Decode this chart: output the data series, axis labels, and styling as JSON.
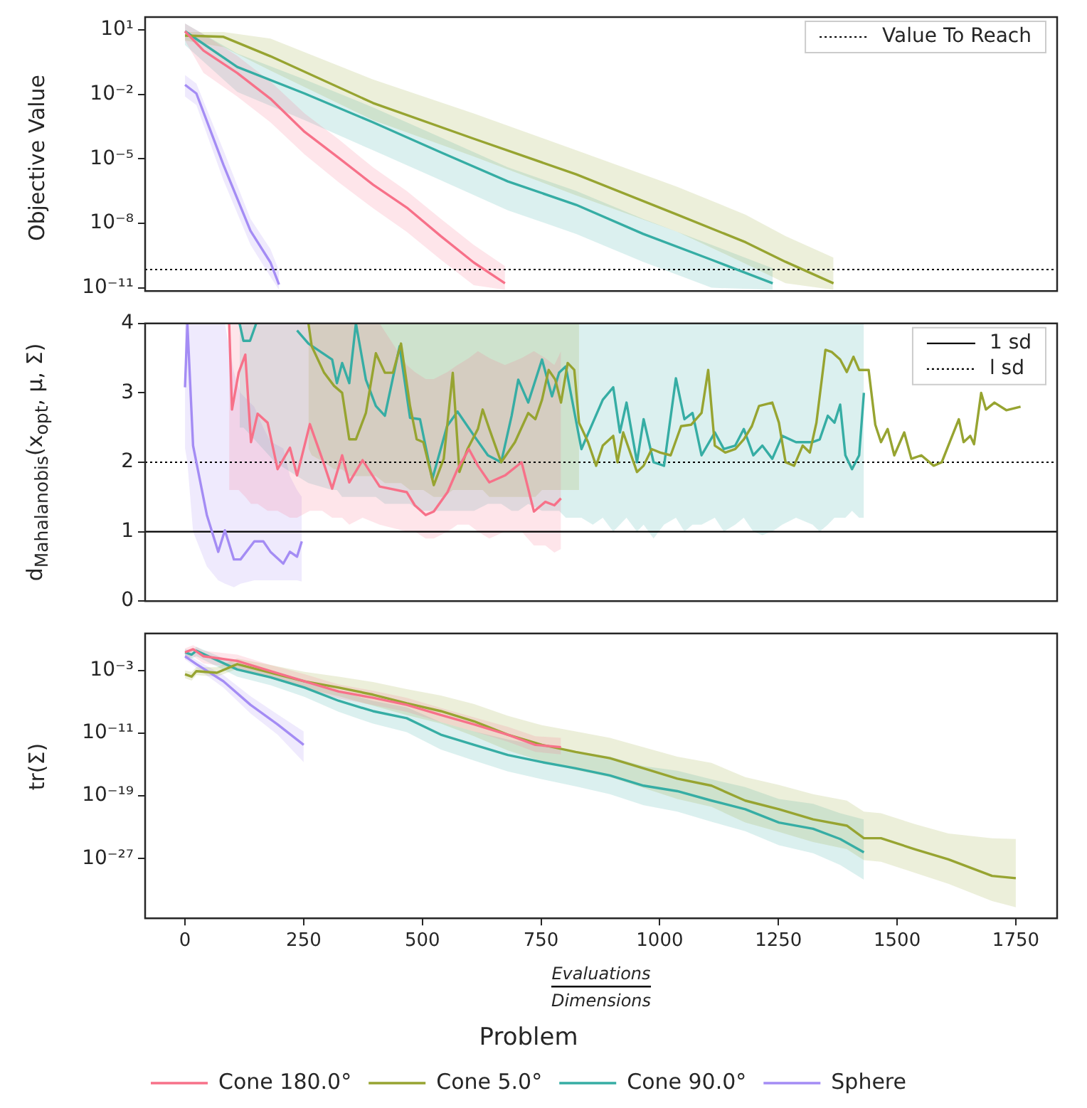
{
  "chart_data": [
    {
      "type": "line",
      "ylabel": "Objective Value",
      "log": true,
      "xlim": [
        -84,
        1837
      ],
      "ylim": [
        7e-12,
        40
      ],
      "tick_labels": "y",
      "legend": "top right",
      "yticks": [
        {
          "value": 10,
          "label": "10¹"
        },
        {
          "value": 0.01,
          "label": "10⁻²"
        },
        {
          "value": 1e-05,
          "label": "10⁻⁵"
        },
        {
          "value": 1e-08,
          "label": "10⁻⁸"
        },
        {
          "value": 1e-11,
          "label": "10⁻¹¹"
        }
      ],
      "ref_lines": [
        {
          "axis": "y",
          "value": 7e-11,
          "label": "Value To Reach",
          "line_style": "dotted",
          "color": "#000000"
        }
      ],
      "series": [
        {
          "color": "#f77189",
          "x": [
            0,
            39,
            110,
            180,
            252,
            324,
            396,
            467,
            539,
            608,
            674
          ],
          "values": [
            8.7,
            1.1,
            0.1,
            0.0063,
            0.00018,
            1.1e-05,
            6.3e-07,
            5.4e-08,
            2.5e-09,
            1.5e-10,
            1.6e-11
          ],
          "upper": [
            20,
            6.3,
            0.63,
            0.04,
            0.0013,
            8e-05,
            4e-06,
            3.2e-07,
            1.6e-08,
            1e-09,
            1e-10
          ],
          "lower": [
            3.2,
            0.1,
            0.008,
            0.0005,
            1.6e-05,
            8e-07,
            5e-08,
            4e-09,
            2e-10,
            1.3e-11,
            8e-12
          ]
        },
        {
          "color": "#97a431",
          "x": [
            0,
            81,
            180,
            396,
            608,
            824,
            1037,
            1181,
            1265,
            1366
          ],
          "values": [
            5.5,
            4.8,
            0.6,
            0.004,
            8.7e-05,
            1.9e-06,
            2.5e-08,
            1.3e-09,
            1.6e-10,
            1.6e-11
          ],
          "upper": [
            8,
            8,
            4,
            0.05,
            0.0013,
            2.5e-05,
            5e-07,
            2.5e-08,
            2.5e-09,
            2.5e-10
          ],
          "lower": [
            3.2,
            1.6,
            0.13,
            0.00063,
            1.3e-05,
            2e-07,
            4e-09,
            1.3e-10,
            1.6e-11,
            8e-12
          ]
        },
        {
          "color": "#36ada4",
          "x": [
            0,
            110,
            252,
            396,
            539,
            680,
            824,
            965,
            1109,
            1238
          ],
          "values": [
            8.7,
            0.19,
            0.011,
            0.0005,
            2e-05,
            8.9e-07,
            7.2e-08,
            3.2e-09,
            2e-10,
            1.6e-11
          ],
          "upper": [
            20,
            0.8,
            0.05,
            0.0025,
            0.0001,
            4e-06,
            3.2e-07,
            1.6e-08,
            1e-09,
            8e-11
          ],
          "lower": [
            2,
            0.013,
            0.00063,
            2.5e-05,
            1e-06,
            4e-08,
            3.2e-09,
            1.6e-10,
            1e-11,
            8e-12
          ]
        },
        {
          "color": "#a48cf4",
          "x": [
            0,
            24,
            81,
            138,
            180,
            198
          ],
          "values": [
            0.028,
            0.011,
            5.2e-06,
            4.4e-09,
            1.5e-10,
            1.4e-11
          ],
          "upper": [
            0.08,
            0.032,
            2.5e-05,
            1.6e-08,
            6.3e-10,
            6.3e-11
          ],
          "lower": [
            0.008,
            0.0032,
            1e-06,
            1e-09,
            3.2e-11,
            8e-12
          ]
        }
      ]
    },
    {
      "type": "line",
      "ylabel": "d$_{Mahalanobis}$(x$_{opt}$, μ, Σ)",
      "xlim": [
        -84,
        1837
      ],
      "ylim": [
        0,
        4
      ],
      "yticks": [
        0,
        1,
        2,
        3,
        4
      ],
      "tick_labels": "y",
      "legend": "top right",
      "ref_lines": [
        {
          "axis": "y",
          "value": 1,
          "label": "1 sd",
          "line_style": "solid",
          "color": "#000000"
        },
        {
          "axis": "y",
          "value": 2,
          "label": "l sd",
          "line_style": "dotted",
          "color": "#000000"
        }
      ],
      "series": [
        {
          "color": "#f77189",
          "x": [
            93,
            99,
            113,
            127,
            139,
            153,
            174,
            195,
            221,
            236,
            263,
            289,
            310,
            331,
            346,
            374,
            410,
            467,
            484,
            507,
            524,
            553,
            574,
            598,
            617,
            641,
            674,
            709,
            735,
            759,
            778,
            792
          ],
          "values": [
            4,
            2.76,
            3.29,
            3.55,
            2.29,
            2.7,
            2.57,
            1.9,
            2.21,
            1.81,
            2.55,
            2.05,
            1.62,
            2.1,
            1.71,
            2.03,
            1.65,
            1.57,
            1.38,
            1.24,
            1.29,
            1.57,
            1.9,
            2.19,
            1.95,
            1.71,
            1.81,
            2.0,
            1.29,
            1.43,
            1.38,
            1.48
          ],
          "upper": [
            4,
            4,
            4,
            4,
            4,
            4,
            4,
            4,
            4,
            4,
            4,
            4,
            4,
            4,
            4,
            4,
            4,
            3.4,
            3.3,
            3.2,
            3.2,
            3.3,
            3.4,
            3.5,
            3.6,
            3.5,
            3.4,
            3.5,
            3.6,
            3.5,
            3.4,
            3.6
          ],
          "lower": [
            1.6,
            1.6,
            1.6,
            1.5,
            1.4,
            1.4,
            1.3,
            1.3,
            1.2,
            1.2,
            1.3,
            1.3,
            1.2,
            1.2,
            1.1,
            1.2,
            1.1,
            1.0,
            1.0,
            0.9,
            0.9,
            1.0,
            1.1,
            1.1,
            1.0,
            0.9,
            1.0,
            1.0,
            0.8,
            0.8,
            0.7,
            0.75
          ]
        },
        {
          "color": "#97a431",
          "x": [
            260,
            267,
            293,
            314,
            331,
            346,
            360,
            381,
            402,
            421,
            438,
            455,
            474,
            488,
            502,
            524,
            545,
            564,
            578,
            595,
            617,
            627,
            641,
            666,
            695,
            723,
            738,
            752,
            766,
            780,
            792,
            806,
            820,
            830,
            849,
            866,
            880,
            902,
            911,
            923,
            952,
            966,
            983,
            1001,
            1023,
            1045,
            1066,
            1088,
            1102,
            1116,
            1138,
            1159,
            1177,
            1194,
            1209,
            1237,
            1251,
            1265,
            1283,
            1301,
            1316,
            1330,
            1349,
            1362,
            1380,
            1394,
            1408,
            1420,
            1440,
            1454,
            1466,
            1480,
            1494,
            1515,
            1530,
            1551,
            1577,
            1594,
            1616,
            1630,
            1640,
            1654,
            1662,
            1677,
            1687,
            1705,
            1730,
            1760
          ],
          "values": [
            4,
            3.67,
            3.29,
            3.1,
            3.0,
            2.33,
            2.33,
            2.71,
            3.57,
            3.29,
            3.29,
            3.71,
            2.81,
            2.33,
            2.29,
            1.67,
            2.05,
            3.29,
            1.86,
            2.19,
            2.48,
            2.76,
            2.48,
            2.0,
            2.29,
            2.71,
            2.62,
            2.9,
            3.33,
            3.19,
            2.86,
            3.43,
            3.33,
            2.57,
            2.29,
            1.95,
            2.24,
            2.38,
            2.0,
            2.43,
            1.86,
            1.95,
            2.19,
            2.14,
            2.1,
            2.52,
            2.54,
            2.71,
            3.33,
            2.24,
            2.14,
            2.19,
            2.33,
            2.52,
            2.81,
            2.86,
            2.57,
            2.0,
            1.95,
            2.24,
            2.14,
            2.57,
            3.62,
            3.59,
            3.48,
            3.3,
            3.52,
            3.33,
            3.33,
            2.54,
            2.29,
            2.48,
            2.1,
            2.43,
            2.05,
            2.1,
            1.95,
            2.0,
            2.38,
            2.62,
            2.29,
            2.38,
            2.26,
            3.0,
            2.76,
            2.86,
            2.75,
            2.8
          ],
          "upper": [
            4,
            4,
            4,
            4,
            4,
            4,
            4,
            4,
            4,
            4,
            4,
            4,
            4,
            4,
            4,
            4,
            4,
            4,
            4,
            4,
            4,
            4,
            4,
            4,
            4,
            4,
            4,
            4,
            4,
            4,
            4,
            4,
            4,
            4,
            null,
            null,
            null,
            null,
            null,
            null,
            null,
            null,
            null,
            null,
            null,
            null,
            null,
            null,
            null,
            null,
            null,
            null,
            null,
            null,
            null,
            null,
            null,
            null,
            null,
            null,
            null,
            null,
            null,
            null,
            null,
            null,
            null,
            null,
            null,
            null,
            null,
            null,
            null,
            null,
            null,
            null,
            null,
            null,
            null,
            null,
            null,
            null,
            null,
            null,
            null,
            null,
            null,
            null
          ],
          "lower": [
            2.2,
            2.1,
            2.0,
            1.9,
            1.9,
            1.8,
            1.8,
            1.8,
            1.8,
            1.7,
            1.7,
            1.7,
            1.6,
            1.6,
            1.6,
            1.5,
            1.5,
            1.6,
            1.6,
            1.6,
            1.6,
            1.6,
            1.5,
            1.5,
            1.5,
            1.5,
            1.5,
            1.6,
            1.6,
            1.6,
            1.6,
            1.6,
            1.6,
            1.6,
            null,
            null,
            null,
            null,
            null,
            null,
            null,
            null,
            null,
            null,
            null,
            null,
            null,
            null,
            null,
            null,
            null,
            null,
            null,
            null,
            null,
            null,
            null,
            null,
            null,
            null,
            null,
            null,
            null,
            null,
            null,
            null,
            null,
            null,
            null,
            null,
            null,
            null,
            null,
            null,
            null,
            null,
            null,
            null,
            null,
            null,
            null,
            null,
            null,
            null,
            null,
            null,
            null,
            null
          ]
        },
        {
          "color": "#36ada4",
          "x": [
            115,
            123,
            137,
            150,
            190,
            236,
            260,
            310,
            320,
            331,
            346,
            360,
            381,
            402,
            421,
            452,
            474,
            495,
            521,
            552,
            574,
            609,
            638,
            666,
            688,
            702,
            723,
            752,
            773,
            788,
            802,
            823,
            835,
            859,
            880,
            902,
            916,
            930,
            952,
            966,
            987,
            1009,
            1034,
            1052,
            1069,
            1088,
            1116,
            1135,
            1159,
            1177,
            1197,
            1216,
            1237,
            1258,
            1287,
            1322,
            1337,
            1354,
            1368,
            1380,
            1391,
            1405,
            1420,
            1430
          ],
          "values": [
            4,
            3.75,
            3.75,
            4,
            null,
            3.9,
            3.71,
            3.48,
            3.14,
            3.43,
            3.14,
            4,
            3.19,
            2.81,
            2.67,
            3.67,
            2.64,
            2.62,
            1.76,
            2.52,
            2.73,
            2.38,
            2.1,
            2.0,
            2.67,
            3.19,
            2.86,
            3.48,
            2.95,
            3.29,
            3.38,
            2.62,
            2.19,
            2.57,
            2.9,
            3.08,
            2.43,
            2.86,
            2.0,
            2.62,
            2.0,
            1.95,
            3.21,
            2.62,
            2.71,
            2.1,
            2.43,
            2.19,
            2.24,
            2.48,
            2.1,
            2.24,
            2.05,
            2.38,
            2.29,
            2.29,
            2.33,
            2.67,
            2.57,
            2.83,
            2.1,
            1.9,
            2.1,
            3.0
          ],
          "upper": [
            4,
            4,
            4,
            4,
            4,
            4,
            4,
            4,
            4,
            4,
            4,
            4,
            4,
            4,
            4,
            4,
            4,
            4,
            4,
            4,
            4,
            4,
            4,
            4,
            4,
            4,
            4,
            4,
            4,
            4,
            4,
            4,
            4,
            4,
            4,
            4,
            4,
            4,
            4,
            4,
            4,
            4,
            4,
            4,
            4,
            4,
            4,
            4,
            4,
            4,
            4,
            4,
            4,
            4,
            4,
            4,
            4,
            4,
            4,
            4,
            4,
            4,
            4,
            4
          ],
          "lower": [
            2.5,
            2.5,
            2.4,
            2.3,
            2.0,
            1.8,
            1.7,
            1.6,
            1.6,
            1.5,
            1.5,
            1.5,
            1.5,
            1.5,
            1.4,
            1.4,
            1.4,
            1.3,
            1.3,
            1.3,
            1.3,
            1.3,
            1.4,
            1.4,
            1.3,
            1.3,
            1.4,
            1.3,
            1.3,
            1.3,
            1.2,
            1.2,
            1.2,
            1.1,
            1.2,
            1.0,
            1.1,
            1.2,
            1.0,
            1.1,
            0.9,
            1.1,
            1.2,
            1.0,
            1.1,
            1.1,
            1.2,
            1.0,
            1.1,
            1.2,
            1.0,
            0.95,
            1.0,
            1.1,
            1.2,
            1.1,
            1.0,
            1.1,
            1.2,
            1.2,
            1.2,
            1.3,
            1.2,
            1.2
          ]
        },
        {
          "color": "#a48cf4",
          "x": [
            0,
            5,
            17,
            46,
            70,
            84,
            103,
            117,
            146,
            165,
            180,
            207,
            221,
            236,
            246
          ],
          "values": [
            3.08,
            4,
            2.24,
            1.24,
            0.71,
            1.02,
            0.6,
            0.6,
            0.86,
            0.86,
            0.71,
            0.54,
            0.71,
            0.64,
            0.86
          ],
          "upper": [
            4,
            4,
            4,
            4,
            4,
            4,
            3.3,
            3.0,
            2.8,
            2.5,
            2.3,
            2.2,
            1.8,
            1.6,
            1.5
          ],
          "lower": [
            2.2,
            2.0,
            1.0,
            0.5,
            0.3,
            0.25,
            0.2,
            0.25,
            0.3,
            0.3,
            0.3,
            0.3,
            0.3,
            0.3,
            0.28
          ]
        }
      ]
    },
    {
      "type": "line",
      "ylabel": "tr(Σ)",
      "xlabel": "Evaluations\nDimensions",
      "log": true,
      "xlim": [
        -84,
        1837
      ],
      "xticks": [
        0,
        250,
        500,
        750,
        1000,
        1250,
        1500,
        1750
      ],
      "ylim": [
        2.5e-35,
        50
      ],
      "yticks": [
        {
          "value": 0.001,
          "label": "10⁻³"
        },
        {
          "value": 1e-11,
          "label": "10⁻¹¹"
        },
        {
          "value": 1e-19,
          "label": "10⁻¹⁹"
        },
        {
          "value": 1e-27,
          "label": "10⁻²⁷"
        }
      ],
      "legend": "bottom",
      "legend_title": "Problem",
      "series": [
        {
          "name": "Cone 180.0°",
          "color": "#f77189",
          "x": [
            0,
            17,
            39,
            110,
            180,
            252,
            324,
            396,
            467,
            539,
            609,
            680,
            738,
            792
          ],
          "values": [
            0.2,
            0.5,
            0.063,
            0.016,
            0.0008,
            4e-05,
            2e-06,
            3.2e-07,
            4e-08,
            2e-09,
            1.3e-10,
            6.3e-12,
            3.2e-13,
            1.6e-13
          ],
          "upper": [
            0.63,
            1.6,
            0.32,
            0.1,
            0.005,
            0.00032,
            1.6e-05,
            2.5e-06,
            3.2e-07,
            1.6e-08,
            1e-09,
            6.3e-11,
            4e-12,
            2.5e-12
          ],
          "lower": [
            0.025,
            0.063,
            0.008,
            0.002,
            0.0001,
            5e-06,
            2.5e-07,
            4e-08,
            5e-09,
            2.5e-10,
            1.6e-11,
            8e-13,
            4e-14,
            2e-14
          ]
        },
        {
          "name": "Cone 5.0°",
          "color": "#97a431",
          "x": [
            0,
            14,
            24,
            67,
            110,
            180,
            252,
            324,
            396,
            467,
            539,
            609,
            680,
            752,
            823,
            895,
            966,
            1037,
            1109,
            1180,
            1251,
            1323,
            1394,
            1430,
            1466,
            1537,
            1608,
            1700,
            1750
          ],
          "values": [
            0.00032,
            0.00016,
            0.0008,
            0.0005,
            0.0063,
            0.0005,
            4e-05,
            6.3e-06,
            8e-07,
            6.3e-08,
            6.3e-09,
            3.2e-10,
            6.3e-12,
            3.2e-13,
            4e-14,
            6.3e-15,
            3.2e-16,
            1.6e-17,
            2e-18,
            2.5e-20,
            2e-21,
            1e-22,
            1.6e-23,
            4e-25,
            4e-25,
            1.6e-26,
            8e-28,
            6.3e-30,
            3.2e-30
          ],
          "upper": [
            0.001,
            0.00063,
            0.0025,
            0.0025,
            0.032,
            0.005,
            0.00063,
            0.00016,
            3.2e-05,
            4e-06,
            6.3e-07,
            5e-08,
            1.6e-09,
            1e-10,
            1.6e-11,
            2.5e-12,
            1.6e-13,
            1e-14,
            1.6e-15,
            2.5e-17,
            2.5e-18,
            1.6e-19,
            2.5e-20,
            1e-21,
            6.3e-22,
            2.5e-23,
            1.6e-24,
            4e-25,
            3.2e-25
          ],
          "lower": [
            0.0001,
            5e-05,
            0.00025,
            0.00016,
            0.0016,
            0.0001,
            5e-06,
            5e-07,
            3.2e-08,
            2e-09,
            1.6e-10,
            4e-12,
            6.3e-14,
            2.5e-15,
            2e-16,
            2.5e-17,
            1e-18,
            4e-20,
            4e-21,
            4e-23,
            2.5e-24,
            1.3e-25,
            1.6e-26,
            6.3e-28,
            4e-28,
            1.6e-29,
            6.3e-31,
            4e-33,
            6.3e-34
          ]
        },
        {
          "name": "Cone 90.0°",
          "color": "#36ada4",
          "x": [
            0,
            14,
            24,
            110,
            180,
            252,
            324,
            396,
            467,
            539,
            609,
            680,
            752,
            823,
            895,
            966,
            1037,
            1109,
            1180,
            1251,
            1323,
            1380,
            1430
          ],
          "values": [
            0.2,
            0.1,
            0.32,
            0.0013,
            0.00013,
            6.3e-06,
            1.3e-07,
            6.3e-09,
            8e-10,
            6.3e-12,
            3.2e-13,
            1.6e-14,
            2e-15,
            3.2e-16,
            4e-17,
            2e-18,
            4e-19,
            2.5e-20,
            2e-21,
            4e-23,
            6.3e-24,
            3.2e-25,
            6.3e-27
          ],
          "upper": [
            0.5,
            0.32,
            1,
            0.0063,
            0.001,
            6.3e-05,
            2e-06,
            1.3e-07,
            2e-08,
            2.5e-10,
            1.6e-11,
            1.6e-12,
            2.5e-13,
            5e-14,
            1e-14,
            6.3e-16,
            1.6e-16,
            1.3e-17,
            1.3e-18,
            4e-20,
            1e-20,
            6.3e-22,
            1e-22
          ],
          "lower": [
            0.063,
            0.032,
            0.063,
            0.00016,
            1.3e-05,
            4e-07,
            5e-09,
            1.6e-10,
            1.3e-11,
            8e-14,
            3.2e-15,
            1.3e-16,
            1.3e-17,
            1.6e-18,
            1.6e-19,
            6.3e-21,
            1e-21,
            5e-23,
            3.2e-24,
            5e-26,
            5e-27,
            1.6e-28,
            2e-30
          ]
        },
        {
          "name": "Sphere",
          "color": "#a48cf4",
          "x": [
            0,
            24,
            81,
            138,
            195,
            250
          ],
          "values": [
            0.063,
            0.0063,
            4e-05,
            4e-08,
            1.3e-10,
            3.2e-13
          ],
          "upper": [
            0.16,
            0.02,
            0.00025,
            5e-07,
            2.5e-09,
            1.6e-11
          ],
          "lower": [
            0.025,
            0.002,
            6.3e-06,
            3.2e-09,
            6.3e-12,
            2e-15
          ]
        }
      ]
    }
  ]
}
